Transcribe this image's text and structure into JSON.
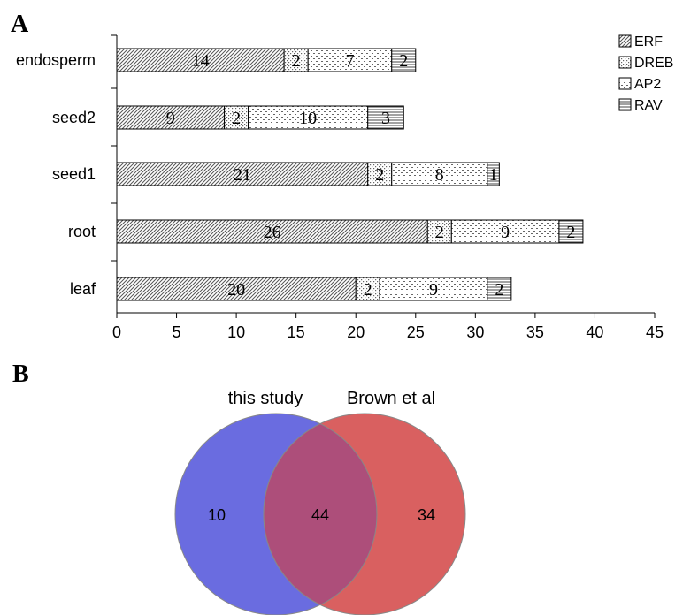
{
  "panel_labels": {
    "a": "A",
    "b": "B"
  },
  "chart_data": [
    {
      "type": "bar",
      "orientation": "horizontal",
      "stacked": true,
      "categories": [
        "endosperm",
        "seed2",
        "seed1",
        "root",
        "leaf"
      ],
      "series": [
        {
          "name": "ERF",
          "values": [
            14,
            9,
            21,
            26,
            20
          ],
          "pattern": "diagonal-hatch"
        },
        {
          "name": "DREB",
          "values": [
            2,
            2,
            2,
            2,
            2
          ],
          "pattern": "dense-dots"
        },
        {
          "name": "AP2",
          "values": [
            7,
            10,
            8,
            9,
            9
          ],
          "pattern": "sparse-dashes"
        },
        {
          "name": "RAV",
          "values": [
            2,
            3,
            1,
            2,
            2
          ],
          "pattern": "horizontal-lines"
        }
      ],
      "xlim": [
        0,
        45
      ],
      "xticks": [
        0,
        5,
        10,
        15,
        20,
        25,
        30,
        35,
        40,
        45
      ],
      "grid": false,
      "legend_position": "top-right",
      "colors": {
        "stroke": "#000000",
        "hatch": "#555555"
      }
    },
    {
      "type": "venn",
      "sets": [
        {
          "name": "this study",
          "only": 10,
          "color": "#6a6ce0"
        },
        {
          "name": "Brown et al",
          "only": 34,
          "color": "#d96060"
        }
      ],
      "intersection": 44,
      "intersection_color": "#ad4e7a"
    }
  ]
}
